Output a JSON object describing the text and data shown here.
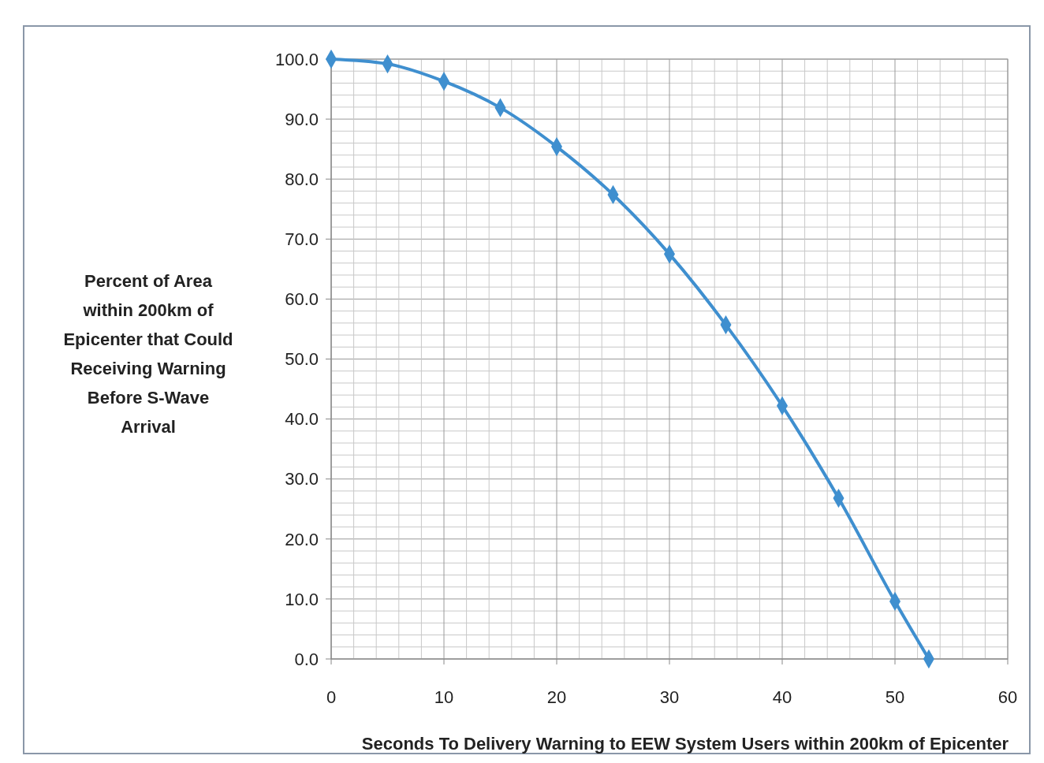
{
  "chart_data": {
    "type": "line",
    "xlabel": "Seconds To Delivery Warning to EEW System Users within 200km of Epicenter",
    "ylabel": "Percent of Area within 200km of Epicenter that Could Receiving Warning Before S-Wave Arrival",
    "x": [
      0,
      5,
      10,
      15,
      20,
      25,
      30,
      35,
      40,
      45,
      50,
      53
    ],
    "series": [
      {
        "color": "#3f8fcf",
        "values": [
          100,
          99.2,
          96.3,
          91.9,
          85.4,
          77.4,
          67.5,
          55.7,
          42.2,
          26.8,
          9.6,
          0
        ]
      }
    ],
    "xlim": [
      0,
      60
    ],
    "xticks": [
      0,
      {
        "value": 2,
        "label": null
      },
      {
        "value": 4,
        "label": null
      },
      {
        "value": 6,
        "label": null
      },
      {
        "value": 8,
        "label": null
      },
      10,
      {
        "value": 12,
        "label": null
      },
      {
        "value": 14,
        "label": null
      },
      {
        "value": 16,
        "label": null
      },
      {
        "value": 18,
        "label": null
      },
      20,
      {
        "value": 22,
        "label": null
      },
      {
        "value": 24,
        "label": null
      },
      {
        "value": 26,
        "label": null
      },
      {
        "value": 28,
        "label": null
      },
      30,
      {
        "value": 32,
        "label": null
      },
      {
        "value": 34,
        "label": null
      },
      {
        "value": 36,
        "label": null
      },
      {
        "value": 38,
        "label": null
      },
      40,
      {
        "value": 42,
        "label": null
      },
      {
        "value": 44,
        "label": null
      },
      {
        "value": 46,
        "label": null
      },
      {
        "value": 48,
        "label": null
      },
      50,
      {
        "value": 52,
        "label": null
      },
      {
        "value": 54,
        "label": null
      },
      {
        "value": 56,
        "label": null
      },
      {
        "value": 58,
        "label": null
      },
      60
    ],
    "ylim": [
      0,
      100
    ],
    "yticks": [
      {
        "value": 0,
        "label": "0.0"
      },
      {
        "value": 2,
        "label": null
      },
      {
        "value": 4,
        "label": null
      },
      {
        "value": 6,
        "label": null
      },
      {
        "value": 8,
        "label": null
      },
      {
        "value": 10,
        "label": "10.0"
      },
      {
        "value": 12,
        "label": null
      },
      {
        "value": 14,
        "label": null
      },
      {
        "value": 16,
        "label": null
      },
      {
        "value": 18,
        "label": null
      },
      {
        "value": 20,
        "label": "20.0"
      },
      {
        "value": 22,
        "label": null
      },
      {
        "value": 24,
        "label": null
      },
      {
        "value": 26,
        "label": null
      },
      {
        "value": 28,
        "label": null
      },
      {
        "value": 30,
        "label": "30.0"
      },
      {
        "value": 32,
        "label": null
      },
      {
        "value": 34,
        "label": null
      },
      {
        "value": 36,
        "label": null
      },
      {
        "value": 38,
        "label": null
      },
      {
        "value": 40,
        "label": "40.0"
      },
      {
        "value": 42,
        "label": null
      },
      {
        "value": 44,
        "label": null
      },
      {
        "value": 46,
        "label": null
      },
      {
        "value": 48,
        "label": null
      },
      {
        "value": 50,
        "label": "50.0"
      },
      {
        "value": 52,
        "label": null
      },
      {
        "value": 54,
        "label": null
      },
      {
        "value": 56,
        "label": null
      },
      {
        "value": 58,
        "label": null
      },
      {
        "value": 60,
        "label": "60.0"
      },
      {
        "value": 62,
        "label": null
      },
      {
        "value": 64,
        "label": null
      },
      {
        "value": 66,
        "label": null
      },
      {
        "value": 68,
        "label": null
      },
      {
        "value": 70,
        "label": "70.0"
      },
      {
        "value": 72,
        "label": null
      },
      {
        "value": 74,
        "label": null
      },
      {
        "value": 76,
        "label": null
      },
      {
        "value": 78,
        "label": null
      },
      {
        "value": 80,
        "label": "80.0"
      },
      {
        "value": 82,
        "label": null
      },
      {
        "value": 84,
        "label": null
      },
      {
        "value": 86,
        "label": null
      },
      {
        "value": 88,
        "label": null
      },
      {
        "value": 90,
        "label": "90.0"
      },
      {
        "value": 92,
        "label": null
      },
      {
        "value": 94,
        "label": null
      },
      {
        "value": 96,
        "label": null
      },
      {
        "value": 98,
        "label": null
      },
      {
        "value": 100,
        "label": "100.0"
      }
    ],
    "grid": true,
    "marker": "diamond",
    "line_style": "solid"
  }
}
